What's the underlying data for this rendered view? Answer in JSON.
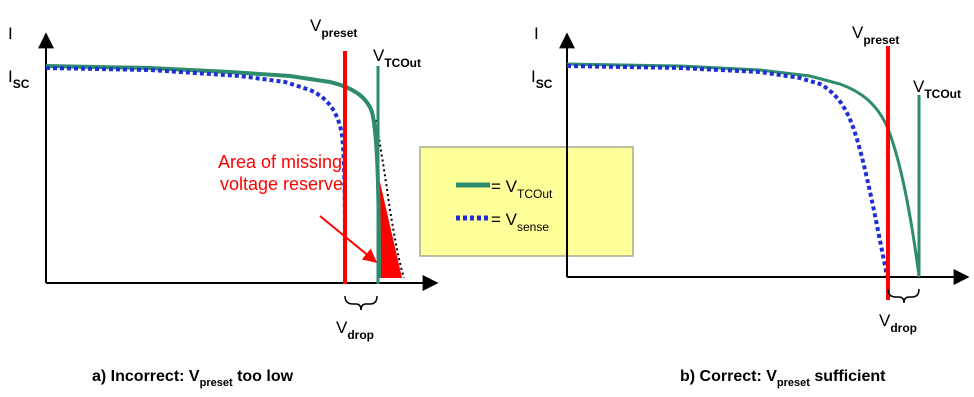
{
  "colors": {
    "tcout_curve": "#2e8b6e",
    "sense_curve": "#1f2fd6",
    "preset_line": "#ff0000",
    "tcout_line": "#2e8b6e",
    "missing_area": "#ff0000",
    "legend_bg": "#ffff99",
    "legend_border": "#a8a890"
  },
  "panel_a": {
    "y_axis": "I",
    "isc_main": "I",
    "isc_sub": "SC",
    "preset_main": "V",
    "preset_sub": "preset",
    "tcout_main": "V",
    "tcout_sub": "TCOut",
    "drop_main": "V",
    "drop_sub": "drop",
    "annotation_line1": "Area of missing",
    "annotation_line2": "voltage reserve",
    "caption_prefix": "a) Incorrect: V",
    "caption_sub": "preset",
    "caption_suffix": " too low"
  },
  "legend": {
    "tcout_eq": "= V",
    "tcout_sub": "TCOut",
    "sense_eq": "= V",
    "sense_sub": "sense"
  },
  "panel_b": {
    "y_axis": "I",
    "isc_main": "I",
    "isc_sub": "SC",
    "preset_main": "V",
    "preset_sub": "preset",
    "tcout_main": "V",
    "tcout_sub": "TCOut",
    "drop_main": "V",
    "drop_sub": "drop",
    "caption_prefix": "b)  Correct: V",
    "caption_sub": "preset",
    "caption_suffix": " sufficient"
  }
}
